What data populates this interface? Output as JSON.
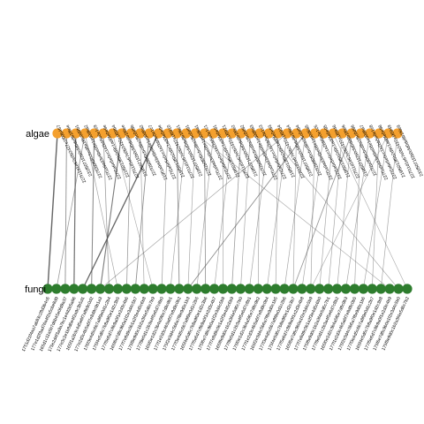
{
  "diagram": {
    "type": "bipartite-network",
    "top_group": {
      "label": "algae",
      "color": "#F4A02E"
    },
    "bottom_group": {
      "label": "fungi",
      "color": "#2E7D2E"
    },
    "edge_color": "#555555"
  },
  "chart_data": {
    "type": "bipartite",
    "top": {
      "name": "algae",
      "nodes": [
        "227f11d1e67e0b2427e1f09b457",
        "231f5071f2b0cfd0de8b1f6ee",
        "227f2b0f0f0cbcd8a1f6c0d9b1",
        "227f1a9ad3e6be08e1ed0d6a2",
        "227f2a6e5e0cc1a2bb5e0e1c9",
        "221f5013f5b2d9c1ad0fe0e9e",
        "227f11d1e67e0b2427e1f09b4",
        "219f5071f2b0cfd0de8b1f6ee",
        "227f2b0f0f0cbcd8a1f6c0d9b",
        "219f1a9ad3e6be08e1ed0d6a2",
        "227f2a6e5e0cc1a2bb5e0e1c7",
        "219f5013f5b2d9c1ad0fe0e9e",
        "227f11d1e67e0b2427e1f0910",
        "219f5071f2b0cfd0de8b1f6e1",
        "227f2b0f0f0cbcd8a1f6c0d91",
        "227f1a9ad3e6be08e1ed0d6a1",
        "227f2a6e5e0cc1a2bb5e0e1c1",
        "219f5013f5b2d9c1ad0fe0e91",
        "227f11d1e67e0b2427e1f0921",
        "219f5071f2b0cfd0de8b1f6e2",
        "227f2b0f0f0cbcd8a1f6c0d92",
        "227f1a9ad3e6be08e1ed0d6a3",
        "227f2a6e5e0cc1a2bb5e0e1c3",
        "219f5013f5b2d9c1ad0fe0e93",
        "227f11d1e67e0b2427e1f0934",
        "219f5071f2b0cfd0de8b1f6e4",
        "227f2b0f0f0cbcd8a1f6c0d94",
        "227f1a9ad3e6be08e1ed0d6a5",
        "227f2a6e5e0cc1a2bb5e0e1c5",
        "219f5013f5b2d9c1ad0fe0e95",
        "227f11d1e67e0b2427e1f0946",
        "219f5071f2b0cfd0de8b1f6e6",
        "227f2b0f0f0cbcd8a1f6c0d96",
        "227f1a9ad3e6be08e1ed0d6a7",
        "227f2a6e5e0cc1a2bb5e0e1c8",
        "219f5013f5b2d9c1ad0fe0e98",
        "227f11d1e67e0b2427e1f0949",
        "231f5071f2b0cfd0de8b1f6e9"
      ]
    },
    "bottom": {
      "name": "fungi",
      "nodes": [
        "1751d21f4aa7ab83c28d3b4c6",
        "177e1d2f3ad76a4f2a5cbe8d9",
        "165d1c11a5b7d6b45e0fd9a37",
        "175e2d4f3a9a7bc1e4d2b5a86",
        "177e3c2e1b8d6e4f2a9c3b5d1",
        "165f1a2b3c4d5e6f7a8b9c0d2",
        "177e2d3c4b5a6f7e8d9c0b1a3",
        "176f3e4d5c6b7a8f9e0d1c2b4",
        "175f4e5d6c7b8a9f0e1d2c3b5",
        "177f5e6d7c8b9a0f1e2d3c4b6",
        "165f6e7d8c9b0a1f2e3d4c5b7",
        "177f7e8d9c0b1a2f3e4d5c6b8",
        "175f8e9d0c1b2a3f4e5d6c7b9",
        "177f9e0d1c2b3a4f5e6d7c8b0",
        "165f0e1d2c3b4a5f6e7d8c9b1",
        "177f1e2d3c4b5a6f7e8d9c0b2",
        "175f2e3d4c5b6a7f8e9d0c1b3",
        "177f3e4d5c6b7a8f9e0d1c2b5",
        "165f4e5d6c7b8a9f0e1d2c3b6",
        "177f5e6d7c8b9a0f1e2d3c4b7",
        "175f6e7d8c9b0a1f2e3d4c5b8",
        "177f7e8d9c0b1a2f3e4d5c6b9",
        "165f8e9d0c1b2a3f4e5d6c7b0",
        "177f9e0d1c2b3a4f5e6d7c8b1",
        "175f0e1d2c3b4a5f6e7d8c9b2",
        "177f1e2d3c4b5a6f7e8d9c0b4",
        "165f2e3d4c5b6a7f8e9d0c1b5",
        "177f3e4d5c6b7a8f9e0d1c2b6",
        "175f4e5d6c7b8a9f0e1d2c3b7",
        "177f5e6d7c8b9a0f1e2d3c4b8",
        "165f6e7d8c9b0a1f2e3d4c5b9",
        "177f7e8d9c0b1a2f3e4d5c6b0",
        "175f8e9d0c1b2a3f4e5d6c7b1",
        "177f9e0d1c2b3a4f5e6d7c8b2",
        "165f0e1d2c3b4a5f6e7d8c9b3",
        "177f1e2d3c4b5a6f7e8d9c0b5",
        "175f2e3d4c5b6a7f8e9d0c1b6",
        "177f3e4d5c6b7a8f9e0d1c2b7",
        "165f4e5d6c7b8a9f0e1d2c3b8",
        "177f5e6d7c8b9a0f1e2d3c4b9",
        "175f6e7d8c9b0a1f2e3d4c5b0",
        "175f8e9d0c1b2a3f4e5d6c7b2"
      ]
    },
    "edges": [
      {
        "top": 0,
        "bottom": 0,
        "weight": 2.0
      },
      {
        "top": 1,
        "bottom": 2,
        "weight": 1.0
      },
      {
        "top": 2,
        "bottom": 3,
        "weight": 1.6
      },
      {
        "top": 3,
        "bottom": 1,
        "weight": 0.8
      },
      {
        "top": 3,
        "bottom": 8,
        "weight": 0.6
      },
      {
        "top": 4,
        "bottom": 5,
        "weight": 1.2
      },
      {
        "top": 5,
        "bottom": 7,
        "weight": 0.8
      },
      {
        "top": 6,
        "bottom": 12,
        "weight": 0.5
      },
      {
        "top": 7,
        "bottom": 6,
        "weight": 1.4
      },
      {
        "top": 8,
        "bottom": 9,
        "weight": 0.8
      },
      {
        "top": 9,
        "bottom": 11,
        "weight": 0.6
      },
      {
        "top": 10,
        "bottom": 10,
        "weight": 1.0
      },
      {
        "top": 11,
        "bottom": 4,
        "weight": 1.8
      },
      {
        "top": 12,
        "bottom": 13,
        "weight": 0.7
      },
      {
        "top": 13,
        "bottom": 15,
        "weight": 1.0
      },
      {
        "top": 14,
        "bottom": 14,
        "weight": 0.6
      },
      {
        "top": 15,
        "bottom": 16,
        "weight": 0.6
      },
      {
        "top": 16,
        "bottom": 18,
        "weight": 0.9
      },
      {
        "top": 17,
        "bottom": 17,
        "weight": 0.6
      },
      {
        "top": 18,
        "bottom": 20,
        "weight": 0.6
      },
      {
        "top": 19,
        "bottom": 19,
        "weight": 0.6
      },
      {
        "top": 20,
        "bottom": 21,
        "weight": 0.8
      },
      {
        "top": 21,
        "bottom": 22,
        "weight": 0.6
      },
      {
        "top": 22,
        "bottom": 24,
        "weight": 0.6
      },
      {
        "top": 23,
        "bottom": 23,
        "weight": 0.6
      },
      {
        "top": 24,
        "bottom": 26,
        "weight": 0.6
      },
      {
        "top": 25,
        "bottom": 25,
        "weight": 0.6
      },
      {
        "top": 26,
        "bottom": 28,
        "weight": 0.6
      },
      {
        "top": 27,
        "bottom": 27,
        "weight": 0.6
      },
      {
        "top": 28,
        "bottom": 30,
        "weight": 0.6
      },
      {
        "top": 29,
        "bottom": 29,
        "weight": 0.6
      },
      {
        "top": 30,
        "bottom": 31,
        "weight": 0.6
      },
      {
        "top": 31,
        "bottom": 32,
        "weight": 0.6
      },
      {
        "top": 32,
        "bottom": 33,
        "weight": 0.6
      },
      {
        "top": 33,
        "bottom": 35,
        "weight": 0.6
      },
      {
        "top": 34,
        "bottom": 34,
        "weight": 0.6
      },
      {
        "top": 35,
        "bottom": 37,
        "weight": 0.6
      },
      {
        "top": 36,
        "bottom": 36,
        "weight": 0.6
      },
      {
        "top": 37,
        "bottom": 38,
        "weight": 0.6
      },
      {
        "top": 15,
        "bottom": 39,
        "weight": 0.5
      },
      {
        "top": 23,
        "bottom": 40,
        "weight": 0.5
      },
      {
        "top": 30,
        "bottom": 41,
        "weight": 0.5
      },
      {
        "top": 25,
        "bottom": 6,
        "weight": 0.6
      },
      {
        "top": 27,
        "bottom": 16,
        "weight": 1.0
      },
      {
        "top": 32,
        "bottom": 28,
        "weight": 0.9
      },
      {
        "top": 36,
        "bottom": 30,
        "weight": 0.5
      }
    ]
  }
}
